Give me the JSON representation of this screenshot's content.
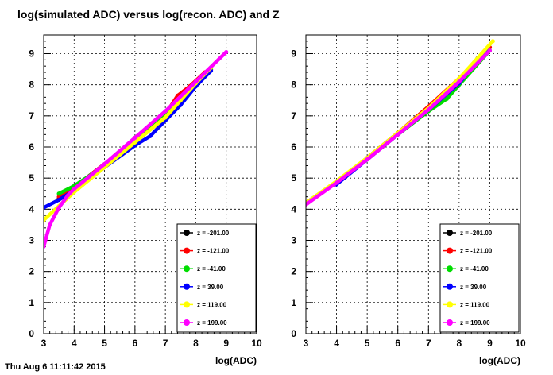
{
  "page": {
    "title": "log(simulated ADC) versus log(recon. ADC) and Z",
    "footer": "Thu Aug 6 11:11:42 2015"
  },
  "chart_data": [
    {
      "type": "scatter",
      "title": "",
      "xlabel": "log(ADC)",
      "ylabel": "",
      "xlim": [
        3,
        10
      ],
      "ylim": [
        0,
        9.6
      ],
      "x_ticks": [
        3,
        4,
        5,
        6,
        7,
        8,
        9,
        10
      ],
      "y_ticks": [
        0,
        1,
        2,
        3,
        4,
        5,
        6,
        7,
        8,
        9
      ],
      "grid": true,
      "legend_position": "bottom-right",
      "series": [
        {
          "name": "z = -201.00",
          "color": "#000000",
          "x": [
            3.5,
            4.0,
            5.0,
            6.0,
            7.0,
            7.5,
            8.0,
            8.4
          ],
          "y": [
            4.35,
            4.7,
            5.45,
            6.2,
            7.0,
            7.7,
            8.05,
            8.45
          ]
        },
        {
          "name": "z = -121.00",
          "color": "#ff0000",
          "x": [
            3.5,
            4.0,
            5.0,
            6.0,
            7.0,
            7.4,
            7.8,
            8.3
          ],
          "y": [
            4.4,
            4.7,
            5.45,
            6.25,
            7.05,
            7.65,
            7.95,
            8.4
          ]
        },
        {
          "name": "z = -41.00",
          "color": "#00dd00",
          "x": [
            3.5,
            4.0,
            5.0,
            6.0,
            7.0,
            7.5,
            8.0,
            8.5
          ],
          "y": [
            4.5,
            4.75,
            5.4,
            6.2,
            7.0,
            7.5,
            7.95,
            8.5
          ]
        },
        {
          "name": "z = 39.00",
          "color": "#0000ff",
          "x": [
            3.0,
            3.5,
            4.0,
            5.0,
            6.0,
            6.5,
            7.0,
            7.5,
            8.0,
            8.5
          ],
          "y": [
            4.05,
            4.3,
            4.6,
            5.35,
            6.05,
            6.35,
            6.85,
            7.35,
            7.95,
            8.45
          ]
        },
        {
          "name": "z = 119.00",
          "color": "#ffff00",
          "x": [
            3.0,
            3.5,
            4.0,
            5.0,
            6.0,
            7.0,
            7.5,
            8.0,
            8.5
          ],
          "y": [
            3.65,
            4.1,
            4.55,
            5.35,
            6.15,
            6.95,
            7.5,
            8.05,
            8.55
          ]
        },
        {
          "name": "z = 199.00",
          "color": "#ff00ff",
          "x": [
            3.0,
            3.2,
            3.5,
            3.8,
            4.0,
            4.5,
            5.0,
            6.0,
            7.0,
            8.0,
            9.0
          ],
          "y": [
            2.8,
            3.5,
            4.05,
            4.45,
            4.65,
            5.05,
            5.45,
            6.3,
            7.15,
            8.1,
            9.05
          ]
        }
      ]
    },
    {
      "type": "scatter",
      "title": "",
      "xlabel": "log(ADC)",
      "ylabel": "",
      "xlim": [
        3,
        10
      ],
      "ylim": [
        0,
        9.6
      ],
      "x_ticks": [
        3,
        4,
        5,
        6,
        7,
        8,
        9,
        10
      ],
      "y_ticks": [
        0,
        1,
        2,
        3,
        4,
        5,
        6,
        7,
        8,
        9
      ],
      "grid": true,
      "legend_position": "bottom-right",
      "series": [
        {
          "name": "z = -201.00",
          "color": "#000000",
          "x": [
            3.0,
            4.0,
            5.0,
            6.0,
            7.0,
            8.0,
            8.6,
            9.0
          ],
          "y": [
            4.2,
            4.85,
            5.65,
            6.45,
            7.25,
            8.15,
            8.85,
            9.2
          ]
        },
        {
          "name": "z = -121.00",
          "color": "#ff0000",
          "x": [
            3.0,
            4.0,
            5.0,
            6.0,
            7.0,
            8.0,
            9.0
          ],
          "y": [
            4.2,
            4.85,
            5.65,
            6.45,
            7.3,
            8.2,
            9.2
          ]
        },
        {
          "name": "z = -41.00",
          "color": "#00dd00",
          "x": [
            3.0,
            4.0,
            5.0,
            6.0,
            7.0,
            7.6,
            8.0,
            9.0
          ],
          "y": [
            4.2,
            4.85,
            5.6,
            6.4,
            7.15,
            7.55,
            8.0,
            9.1
          ]
        },
        {
          "name": "z = 39.00",
          "color": "#0000ff",
          "x": [
            3.0,
            3.8,
            4.0,
            5.0,
            6.0,
            7.0,
            8.0,
            8.9
          ],
          "y": [
            4.2,
            4.75,
            4.8,
            5.6,
            6.4,
            7.2,
            8.05,
            9.15
          ]
        },
        {
          "name": "z = 119.00",
          "color": "#ffff00",
          "x": [
            3.0,
            4.0,
            5.0,
            6.0,
            7.0,
            8.0,
            9.1
          ],
          "y": [
            4.2,
            4.9,
            5.65,
            6.45,
            7.25,
            8.2,
            9.4
          ]
        },
        {
          "name": "z = 199.00",
          "color": "#ff00ff",
          "x": [
            3.0,
            4.0,
            5.0,
            6.0,
            7.0,
            8.0,
            9.0
          ],
          "y": [
            4.15,
            4.85,
            5.6,
            6.4,
            7.2,
            8.1,
            9.1
          ]
        }
      ]
    }
  ]
}
